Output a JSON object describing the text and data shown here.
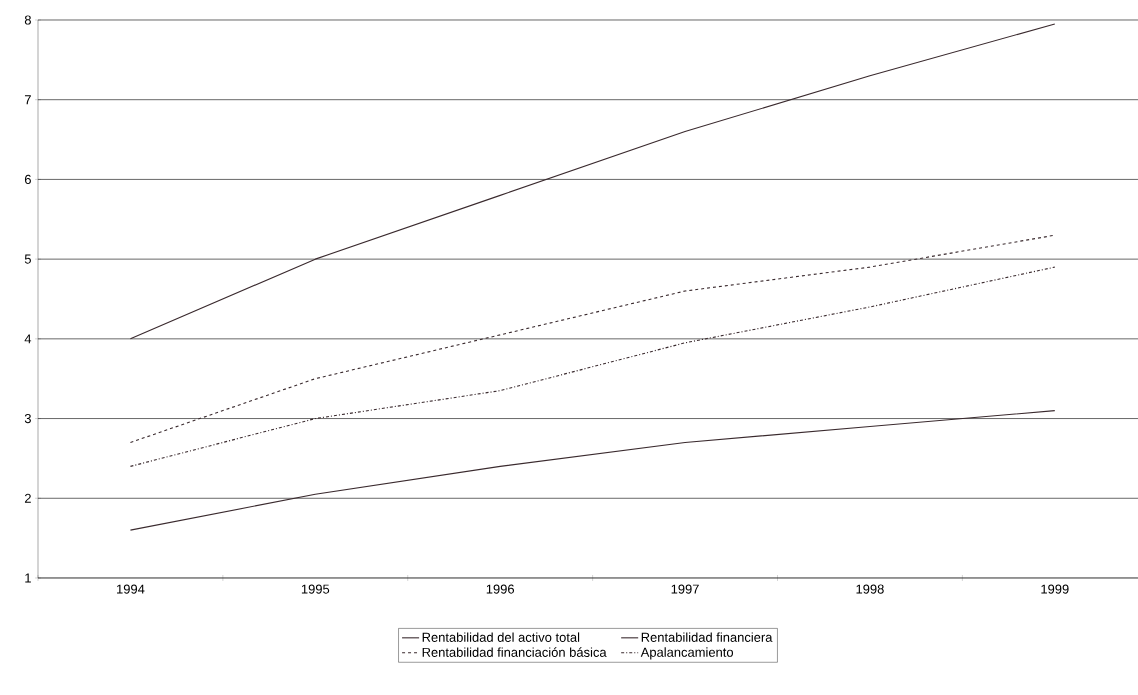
{
  "chart_data": {
    "type": "line",
    "categories": [
      "1994",
      "1995",
      "1996",
      "1997",
      "1998",
      "1999"
    ],
    "series": [
      {
        "name": "Rentabilidad del activo total",
        "color": "#3a2a2e",
        "line_style": "solid",
        "values": [
          1.6,
          2.05,
          2.4,
          2.7,
          2.9,
          3.1
        ]
      },
      {
        "name": "Rentabilidad financiera",
        "color": "#3a2a2e",
        "line_style": "solid",
        "values": [
          4.0,
          5.0,
          5.8,
          6.6,
          7.3,
          7.95
        ]
      },
      {
        "name": "Rentabilidad financiación básica",
        "color": "#3a2a2e",
        "line_style": "dashed",
        "values": [
          2.7,
          3.5,
          4.05,
          4.6,
          4.9,
          5.3
        ]
      },
      {
        "name": "Apalancamiento",
        "color": "#3a2a2e",
        "line_style": "dashdot",
        "values": [
          2.4,
          3.0,
          3.35,
          3.95,
          4.4,
          4.9
        ]
      }
    ],
    "ylim": [
      1,
      8
    ],
    "yticks": [
      1,
      2,
      3,
      4,
      5,
      6,
      7,
      8
    ],
    "grid": "y",
    "legend": "bottom",
    "marker": "none"
  }
}
